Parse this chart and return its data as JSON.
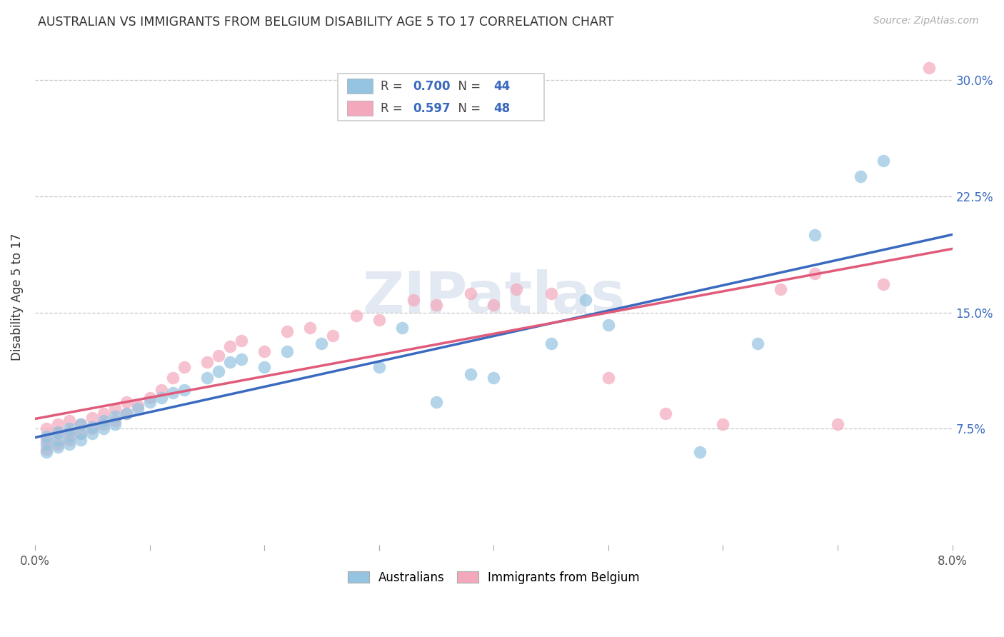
{
  "title": "AUSTRALIAN VS IMMIGRANTS FROM BELGIUM DISABILITY AGE 5 TO 17 CORRELATION CHART",
  "source": "Source: ZipAtlas.com",
  "ylabel": "Disability Age 5 to 17",
  "yaxis_labels": [
    "7.5%",
    "15.0%",
    "22.5%",
    "30.0%"
  ],
  "yaxis_ticks": [
    0.075,
    0.15,
    0.225,
    0.3
  ],
  "xlim": [
    0.0,
    0.08
  ],
  "ylim": [
    0.0,
    0.32
  ],
  "legend_label1": "Australians",
  "legend_label2": "Immigrants from Belgium",
  "R1": 0.7,
  "N1": 44,
  "R2": 0.597,
  "N2": 48,
  "color_blue": "#94c4e0",
  "color_pink": "#f4a8bc",
  "color_blue_line": "#3a6abf",
  "color_pink_line": "#e05a7a",
  "color_rn_text": "#3a6abf",
  "background": "#ffffff",
  "grid_color": "#c8c8c8",
  "watermark": "ZIPatlas",
  "aus_x": [
    0.001,
    0.001,
    0.001,
    0.002,
    0.002,
    0.002,
    0.003,
    0.003,
    0.003,
    0.004,
    0.004,
    0.004,
    0.005,
    0.005,
    0.006,
    0.006,
    0.007,
    0.007,
    0.008,
    0.009,
    0.01,
    0.011,
    0.012,
    0.013,
    0.015,
    0.016,
    0.017,
    0.018,
    0.02,
    0.022,
    0.025,
    0.03,
    0.032,
    0.035,
    0.038,
    0.04,
    0.045,
    0.048,
    0.05,
    0.058,
    0.063,
    0.068,
    0.072,
    0.074
  ],
  "aus_y": [
    0.06,
    0.065,
    0.07,
    0.063,
    0.068,
    0.073,
    0.065,
    0.07,
    0.075,
    0.068,
    0.072,
    0.078,
    0.072,
    0.076,
    0.075,
    0.08,
    0.078,
    0.083,
    0.085,
    0.088,
    0.092,
    0.095,
    0.098,
    0.1,
    0.108,
    0.112,
    0.118,
    0.12,
    0.115,
    0.125,
    0.13,
    0.115,
    0.14,
    0.092,
    0.11,
    0.108,
    0.13,
    0.158,
    0.142,
    0.06,
    0.13,
    0.2,
    0.238,
    0.248
  ],
  "bel_x": [
    0.001,
    0.001,
    0.001,
    0.002,
    0.002,
    0.002,
    0.003,
    0.003,
    0.003,
    0.004,
    0.004,
    0.005,
    0.005,
    0.006,
    0.006,
    0.007,
    0.007,
    0.008,
    0.008,
    0.009,
    0.01,
    0.011,
    0.012,
    0.013,
    0.015,
    0.016,
    0.017,
    0.018,
    0.02,
    0.022,
    0.024,
    0.026,
    0.028,
    0.03,
    0.033,
    0.035,
    0.038,
    0.04,
    0.042,
    0.045,
    0.05,
    0.055,
    0.06,
    0.065,
    0.068,
    0.07,
    0.074,
    0.078
  ],
  "bel_y": [
    0.062,
    0.068,
    0.075,
    0.065,
    0.072,
    0.078,
    0.068,
    0.073,
    0.08,
    0.072,
    0.078,
    0.075,
    0.082,
    0.078,
    0.085,
    0.08,
    0.088,
    0.085,
    0.092,
    0.09,
    0.095,
    0.1,
    0.108,
    0.115,
    0.118,
    0.122,
    0.128,
    0.132,
    0.125,
    0.138,
    0.14,
    0.135,
    0.148,
    0.145,
    0.158,
    0.155,
    0.162,
    0.155,
    0.165,
    0.162,
    0.108,
    0.085,
    0.078,
    0.165,
    0.175,
    0.078,
    0.168,
    0.308
  ]
}
